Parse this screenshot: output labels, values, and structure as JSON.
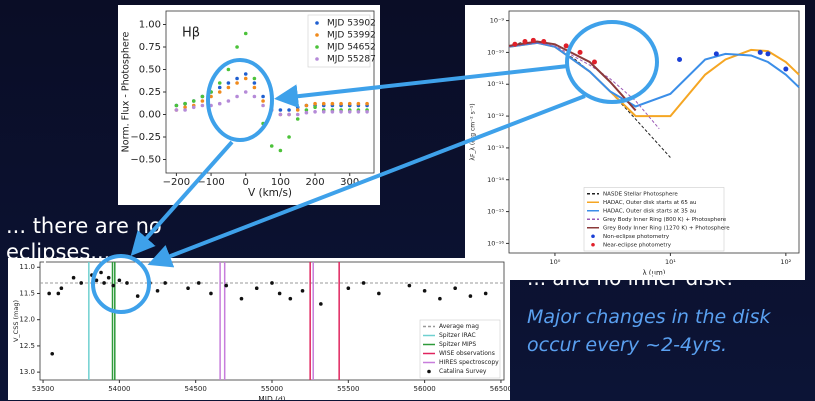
{
  "slide": {
    "caption_left": [
      "... there are no",
      "eclipses..."
    ],
    "caption_right": "... and no inner disk!",
    "note": [
      "Major changes in the disk",
      "occur every ~2-4yrs."
    ]
  },
  "chart_data": [
    {
      "type": "scatter",
      "annotation": "Hβ",
      "xlabel": "V (km/s)",
      "ylabel": "Norm. Flux - Photosphere",
      "xlim": [
        -230,
        370
      ],
      "ylim": [
        -0.65,
        1.15
      ],
      "xticks": [
        {
          "value": -200,
          "label": "−200"
        },
        {
          "value": -100,
          "label": "−100"
        },
        0,
        100,
        200,
        300
      ],
      "yticks": [
        {
          "value": -0.5,
          "label": "−0.50"
        },
        {
          "value": -0.25,
          "label": "−0.25"
        },
        {
          "value": 0,
          "label": "0.00"
        },
        0.25,
        {
          "value": 0.5,
          "label": "0.50"
        },
        0.75,
        {
          "value": 1,
          "label": "1.00"
        }
      ],
      "legend": "upper right",
      "x": [
        -200,
        -175,
        -150,
        -125,
        -100,
        -75,
        -50,
        -25,
        0,
        25,
        50,
        75,
        100,
        125,
        150,
        175,
        200,
        225,
        250,
        275,
        300,
        325,
        350
      ],
      "series": [
        {
          "name": "MJD 53902",
          "color": "#1f5fd0",
          "values": [
            0.1,
            0.12,
            0.15,
            0.2,
            0.25,
            0.3,
            0.35,
            0.4,
            0.45,
            0.35,
            0.2,
            0.1,
            0.05,
            0.05,
            0.08,
            0.1,
            0.1,
            0.1,
            0.1,
            0.1,
            0.1,
            0.1,
            0.1
          ]
        },
        {
          "name": "MJD 53992",
          "color": "#f08a1c",
          "values": [
            0.05,
            0.08,
            0.1,
            0.15,
            0.2,
            0.25,
            0.3,
            0.35,
            0.4,
            0.3,
            0.15,
            0.05,
            0,
            0,
            0.05,
            0.1,
            0.12,
            0.12,
            0.12,
            0.12,
            0.12,
            0.12,
            0.12
          ]
        },
        {
          "name": "MJD 54652",
          "color": "#4cc23a",
          "values": [
            0.1,
            0.12,
            0.15,
            0.2,
            0.25,
            0.35,
            0.5,
            0.75,
            0.9,
            0.4,
            -0.1,
            -0.35,
            -0.4,
            -0.25,
            -0.05,
            0.05,
            0.08,
            0.05,
            0.05,
            0.05,
            0.05,
            0.05,
            0.05
          ]
        },
        {
          "name": "MJD 55287",
          "color": "#b58ad8",
          "values": [
            0.05,
            0.05,
            0.08,
            0.1,
            0.1,
            0.12,
            0.15,
            0.2,
            0.25,
            0.2,
            0.1,
            0.05,
            0,
            0,
            0,
            0.02,
            0.03,
            0.03,
            0.03,
            0.03,
            0.03,
            0.03,
            0.03
          ]
        }
      ]
    },
    {
      "type": "line",
      "log_x": true,
      "log_y": true,
      "xlabel": "λ (μm)",
      "ylabel": "λF_λ (erg cm⁻² s⁻¹)",
      "xlim": [
        0.4,
        130
      ],
      "ylim": [
        5e-17,
        2e-09
      ],
      "xticks": [
        {
          "value": 1,
          "label": "10⁰"
        },
        {
          "value": 10,
          "label": "10¹"
        },
        {
          "value": 100,
          "label": "10²"
        }
      ],
      "yticks": [
        {
          "value": 1e-16,
          "label": "10⁻¹⁶"
        },
        {
          "value": 1e-15,
          "label": "10⁻¹⁵"
        },
        {
          "value": 1e-14,
          "label": "10⁻¹⁴"
        },
        {
          "value": 1e-13,
          "label": "10⁻¹³"
        },
        {
          "value": 1e-12,
          "label": "10⁻¹²"
        },
        {
          "value": 1e-11,
          "label": "10⁻¹¹"
        },
        {
          "value": 1e-10,
          "label": "10⁻¹⁰"
        },
        {
          "value": 1e-09,
          "label": "10⁻⁹"
        }
      ],
      "legend": "lower center",
      "series": [
        {
          "name": "NASDE Stellar Photosphere",
          "color": "#222222",
          "dashed": true,
          "x": [
            0.4,
            0.5,
            0.7,
            1,
            1.5,
            2,
            3,
            5,
            10
          ],
          "values": [
            1.5e-10,
            2e-10,
            2e-10,
            1.5e-10,
            6e-11,
            2.5e-11,
            6e-12,
            8e-13,
            5e-14
          ]
        },
        {
          "name": "HADAC, Outer disk starts at 65 au",
          "color": "#f5a623",
          "x": [
            0.4,
            0.7,
            1,
            2,
            3,
            5,
            10,
            20,
            30,
            50,
            70,
            100,
            130
          ],
          "values": [
            1.5e-10,
            2e-10,
            1.5e-10,
            2.5e-11,
            6e-12,
            1e-12,
            1e-12,
            2e-11,
            6e-11,
            1.2e-10,
            1.1e-10,
            5e-11,
            2e-11
          ]
        },
        {
          "name": "HADAC, Outer disk starts at 35 au",
          "color": "#3b8ee8",
          "x": [
            0.4,
            0.7,
            1,
            2,
            3,
            5,
            10,
            20,
            30,
            50,
            70,
            100,
            130
          ],
          "values": [
            1.5e-10,
            2e-10,
            1.5e-10,
            2.5e-11,
            6e-12,
            2e-12,
            5e-12,
            6e-11,
            9e-11,
            8e-11,
            5e-11,
            2e-11,
            8e-12
          ]
        },
        {
          "name": "Grey Body Inner Ring (800 K) + Photosphere",
          "color": "#9b59b6",
          "dashed": true,
          "x": [
            0.4,
            0.7,
            1,
            2,
            3,
            5,
            8
          ],
          "values": [
            1.5e-10,
            2e-10,
            1.6e-10,
            4e-11,
            1.5e-11,
            3e-12,
            4e-13
          ]
        },
        {
          "name": "Grey Body Inner Ring (1270 K) + Photosphere",
          "color": "#8b3a3a",
          "x": [
            0.4,
            0.7,
            1,
            2,
            3,
            5
          ],
          "values": [
            1.6e-10,
            2.2e-10,
            1.8e-10,
            5e-11,
            1.2e-11,
            1.5e-12
          ]
        },
        {
          "name": "Non-eclipse photometry",
          "color": "#1a3fd6",
          "markers": true,
          "x": [
            12,
            25,
            60,
            70,
            100
          ],
          "values": [
            6e-11,
            9e-11,
            1e-10,
            9e-11,
            3e-11
          ]
        },
        {
          "name": "Near-eclipse photometry",
          "color": "#e0202a",
          "markers": true,
          "x": [
            0.45,
            0.55,
            0.65,
            0.8,
            1.25,
            1.65,
            2.2
          ],
          "values": [
            1.8e-10,
            2.2e-10,
            2.4e-10,
            2.2e-10,
            1.6e-10,
            1e-10,
            5e-11
          ]
        }
      ]
    },
    {
      "type": "scatter",
      "xlabel": "MJD (d)",
      "ylabel": "V_CSS (mag)",
      "xlim": [
        53480,
        56520
      ],
      "ylim": [
        13.15,
        10.9
      ],
      "xticks": [
        53500,
        54000,
        54500,
        55000,
        55500,
        56000,
        56500
      ],
      "yticks": [
        {
          "value": 11,
          "label": "11.0"
        },
        11.5,
        {
          "value": 12,
          "label": "12.0"
        },
        12.5,
        {
          "value": 13,
          "label": "13.0"
        }
      ],
      "legend": "lower right",
      "hlines": [
        {
          "name": "Average mag",
          "color": "#999999",
          "value": 11.3
        }
      ],
      "vlines": [
        {
          "name": "Spitzer IRAC",
          "color": "#6fd0d0",
          "x": [
            53800
          ]
        },
        {
          "name": "Spitzer MIPS",
          "color": "#2e9a3a",
          "x": [
            53955,
            53970
          ]
        },
        {
          "name": "WISE observations",
          "color": "#e0245e",
          "x": [
            55250,
            55440
          ]
        },
        {
          "name": "HIRES spectroscopy",
          "color": "#c77ddb",
          "x": [
            54660,
            54690,
            55270
          ]
        }
      ],
      "series": [
        {
          "name": "Catalina Survey",
          "color": "#111111",
          "x": [
            53540,
            53560,
            53600,
            53620,
            53700,
            53750,
            53820,
            53850,
            53880,
            53900,
            53930,
            53960,
            54000,
            54050,
            54120,
            54200,
            54250,
            54300,
            54450,
            54520,
            54600,
            54700,
            54800,
            54900,
            55000,
            55050,
            55120,
            55200,
            55320,
            55500,
            55600,
            55700,
            55900,
            56000,
            56100,
            56200,
            56300,
            56400
          ],
          "values": [
            11.5,
            12.65,
            11.5,
            11.4,
            11.2,
            11.3,
            11.15,
            11.25,
            11.1,
            11.3,
            11.2,
            11.35,
            11.25,
            11.3,
            11.55,
            11.3,
            11.45,
            11.3,
            11.4,
            11.3,
            11.5,
            11.35,
            11.6,
            11.4,
            11.3,
            11.5,
            11.6,
            11.45,
            11.7,
            11.4,
            11.3,
            11.5,
            11.35,
            11.45,
            11.6,
            11.4,
            11.55,
            11.5
          ]
        }
      ]
    }
  ]
}
